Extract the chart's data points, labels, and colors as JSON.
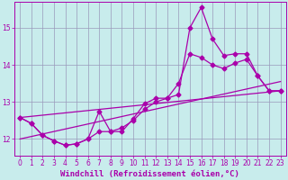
{
  "xlabel": "Windchill (Refroidissement éolien,°C)",
  "background_color": "#c8ecec",
  "grid_color": "#9999bb",
  "line_color": "#aa00aa",
  "xlim": [
    -0.5,
    23.5
  ],
  "ylim": [
    11.55,
    15.7
  ],
  "yticks": [
    12,
    13,
    14,
    15
  ],
  "xticks": [
    0,
    1,
    2,
    3,
    4,
    5,
    6,
    7,
    8,
    9,
    10,
    11,
    12,
    13,
    14,
    15,
    16,
    17,
    18,
    19,
    20,
    21,
    22,
    23
  ],
  "series1_x": [
    0,
    1,
    2,
    3,
    4,
    5,
    6,
    7,
    8,
    9,
    10,
    11,
    12,
    13,
    14,
    15,
    16,
    17,
    18,
    19,
    20,
    21,
    22,
    23
  ],
  "series1_y": [
    12.58,
    12.42,
    12.1,
    11.95,
    11.83,
    11.87,
    12.0,
    12.75,
    12.2,
    12.2,
    12.55,
    12.95,
    13.1,
    13.1,
    13.2,
    15.0,
    15.55,
    14.7,
    14.25,
    14.3,
    14.3,
    13.7,
    13.3,
    13.3
  ],
  "series2_x": [
    0,
    1,
    2,
    3,
    4,
    5,
    6,
    7,
    8,
    9,
    10,
    11,
    12,
    13,
    14,
    15,
    16,
    17,
    18,
    19,
    20,
    21,
    22,
    23
  ],
  "series2_y": [
    12.58,
    12.42,
    12.1,
    11.95,
    11.83,
    11.87,
    12.0,
    12.2,
    12.2,
    12.3,
    12.5,
    12.8,
    13.0,
    13.1,
    13.5,
    14.3,
    14.2,
    14.0,
    13.9,
    14.05,
    14.15,
    13.7,
    13.3,
    13.3
  ],
  "trend1_x": [
    0,
    23
  ],
  "trend1_y": [
    12.58,
    13.3
  ],
  "trend2_x": [
    0,
    23
  ],
  "trend2_y": [
    12.0,
    13.55
  ],
  "marker": "D",
  "markersize": 2.5,
  "linewidth": 0.9,
  "tick_fontsize": 5.5,
  "xlabel_fontsize": 6.5
}
